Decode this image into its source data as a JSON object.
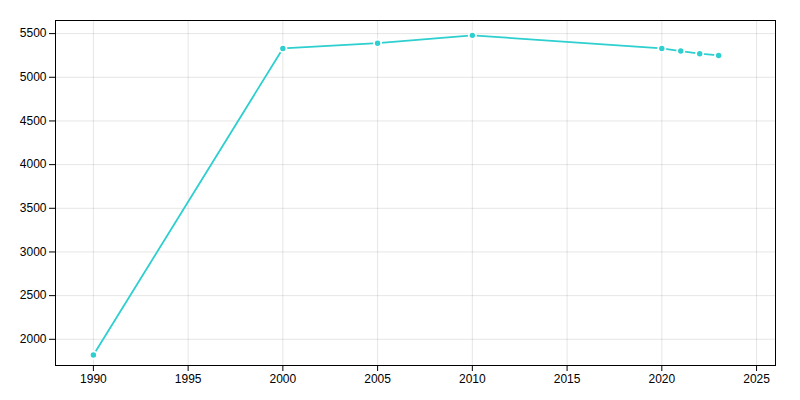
{
  "chart_data": {
    "type": "line",
    "x": [
      1990,
      2000,
      2005,
      2010,
      2020,
      2021,
      2022,
      2023
    ],
    "values": [
      1820,
      5330,
      5390,
      5480,
      5330,
      5300,
      5270,
      5250
    ],
    "color": "#2dcfcf",
    "marker": "circle",
    "xlim": [
      1988,
      2026
    ],
    "ylim": [
      1700,
      5650
    ],
    "xticks": [
      1990,
      1995,
      2000,
      2005,
      2010,
      2015,
      2020,
      2025
    ],
    "yticks": [
      2000,
      2500,
      3000,
      3500,
      4000,
      4500,
      5000,
      5500
    ],
    "grid": true
  }
}
